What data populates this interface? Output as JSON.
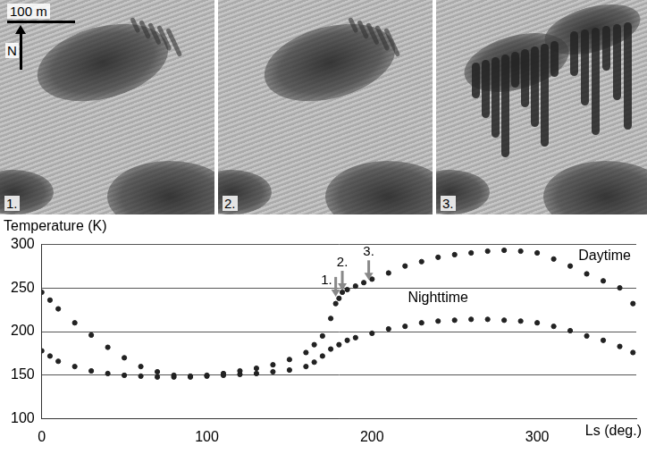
{
  "images": {
    "scale_bar": "100 m",
    "north": "N",
    "panel_labels": [
      "1.",
      "2.",
      "3."
    ]
  },
  "chart_data": {
    "type": "scatter",
    "title": "Temperature (K)",
    "x_label": "Ls (deg.)",
    "xlim": [
      0,
      360
    ],
    "xticks": [
      0,
      100,
      200,
      300
    ],
    "ylim": [
      100,
      300
    ],
    "yticks": [
      100,
      150,
      200,
      250,
      300
    ],
    "grid": true,
    "marker": "circle",
    "series": [
      {
        "name": "Daytime",
        "color": "#222222",
        "label_position": {
          "x": 325,
          "y": 286
        },
        "x": [
          0,
          5,
          10,
          20,
          30,
          40,
          50,
          60,
          70,
          80,
          90,
          100,
          110,
          120,
          130,
          140,
          150,
          160,
          165,
          170,
          175,
          178,
          180,
          182,
          185,
          190,
          195,
          200,
          210,
          220,
          230,
          240,
          250,
          260,
          270,
          280,
          290,
          300,
          310,
          320,
          330,
          340,
          350,
          358
        ],
        "values": [
          245,
          236,
          226,
          210,
          196,
          182,
          170,
          160,
          154,
          150,
          149,
          150,
          152,
          155,
          158,
          162,
          168,
          176,
          185,
          195,
          215,
          232,
          238,
          245,
          248,
          252,
          256,
          260,
          267,
          275,
          280,
          285,
          288,
          290,
          292,
          293,
          292,
          290,
          283,
          275,
          266,
          258,
          250,
          232
        ]
      },
      {
        "name": "Nighttime",
        "color": "#222222",
        "label_position": {
          "x": 240,
          "y": 238
        },
        "x": [
          0,
          5,
          10,
          20,
          30,
          40,
          50,
          60,
          70,
          80,
          90,
          100,
          110,
          120,
          130,
          140,
          150,
          160,
          165,
          170,
          175,
          180,
          185,
          190,
          200,
          210,
          220,
          230,
          240,
          250,
          260,
          270,
          280,
          290,
          300,
          310,
          320,
          330,
          340,
          350,
          358
        ],
        "values": [
          178,
          172,
          166,
          160,
          155,
          152,
          150,
          149,
          148,
          148,
          148,
          149,
          150,
          151,
          152,
          154,
          156,
          160,
          165,
          172,
          180,
          185,
          190,
          193,
          198,
          203,
          206,
          210,
          212,
          213,
          214,
          214,
          213,
          212,
          210,
          206,
          201,
          195,
          190,
          183,
          176
        ]
      }
    ],
    "markers": [
      {
        "label": "1.",
        "x": 178,
        "y": 240
      },
      {
        "label": "2.",
        "x": 182,
        "y": 247
      },
      {
        "label": "3.",
        "x": 198,
        "y": 259
      }
    ]
  }
}
